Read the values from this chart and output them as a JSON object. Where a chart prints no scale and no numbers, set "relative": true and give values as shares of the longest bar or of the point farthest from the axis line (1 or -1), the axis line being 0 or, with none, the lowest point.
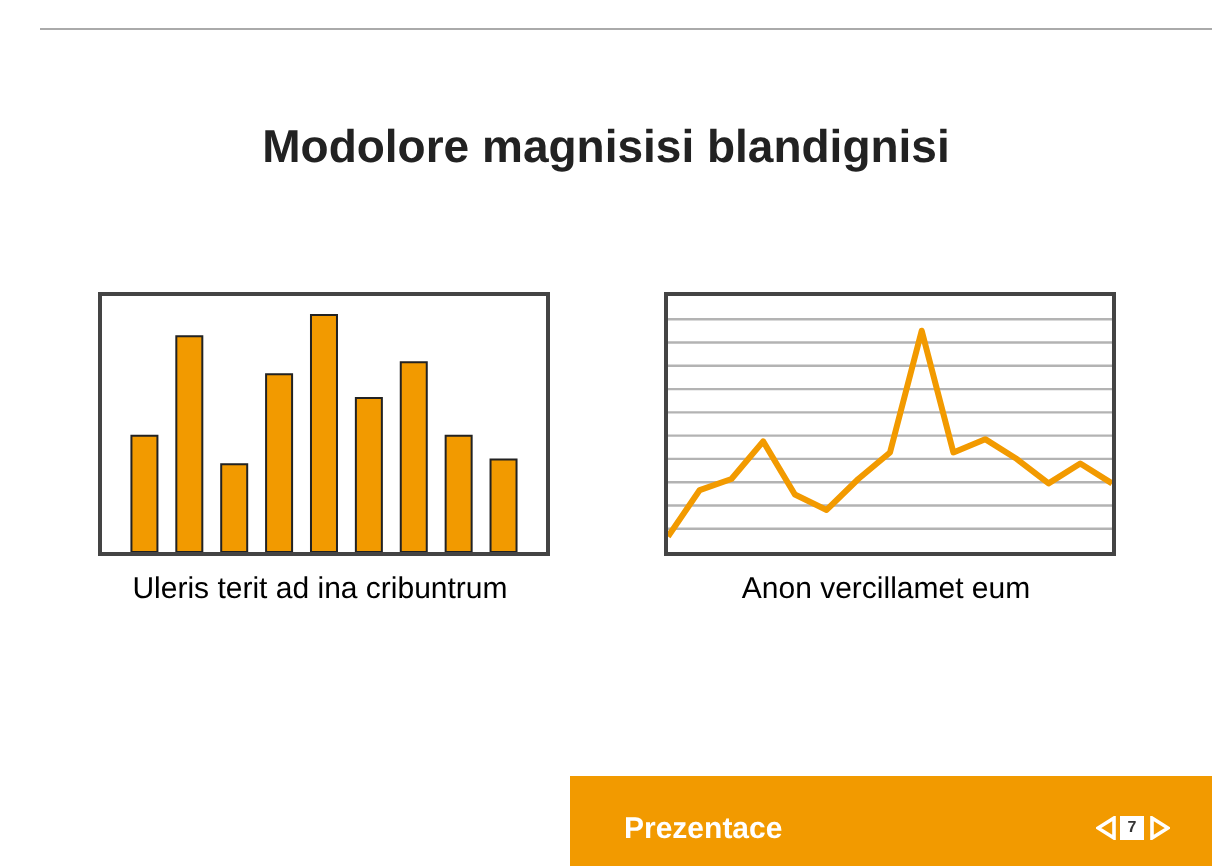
{
  "chart_data": [
    {
      "type": "bar",
      "title": "Modolore magnisisi blandignisi",
      "xlabel": "Uleris terit ad ina cribuntrum",
      "categories": [
        null,
        null,
        null,
        null,
        null,
        null,
        null,
        null,
        null
      ],
      "values": [
        0.49,
        0.91,
        0.37,
        0.75,
        1,
        0.65,
        0.8,
        0.49,
        0.39
      ],
      "color": "#f29a00",
      "relative": true,
      "tick_labels": false,
      "grid": false
    },
    {
      "type": "line",
      "xlabel": "Anon vercillamet eum",
      "categories": [
        null,
        null,
        null,
        null,
        null,
        null,
        null,
        null,
        null,
        null,
        null,
        null,
        null,
        null,
        null
      ],
      "values": [
        0.07,
        0.28,
        0.33,
        0.5,
        0.26,
        0.19,
        0.33,
        0.45,
        1,
        0.45,
        0.51,
        0.42,
        0.31,
        0.4,
        0.31
      ],
      "color": "#f29a00",
      "relative": true,
      "tick_labels": false,
      "grid": "y",
      "marker": "none",
      "line_style": "solid",
      "annotations": [
        "Prezentace",
        "7"
      ]
    }
  ]
}
